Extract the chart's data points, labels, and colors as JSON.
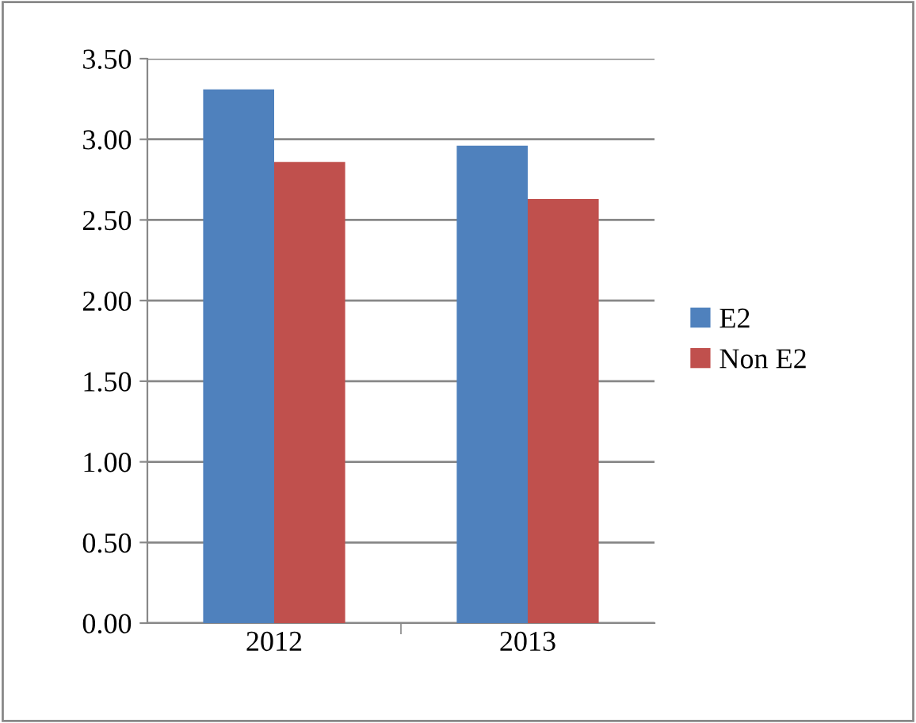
{
  "chart_data": {
    "type": "bar",
    "categories": [
      "2012",
      "2013"
    ],
    "series": [
      {
        "name": "E2",
        "color": "#4f81bd",
        "values": [
          3.31,
          2.96
        ]
      },
      {
        "name": "Non E2",
        "color": "#c0504d",
        "values": [
          2.86,
          2.63
        ]
      }
    ],
    "ylim": [
      0,
      3.5
    ],
    "yticks": [
      {
        "value": 0,
        "label": "0.00"
      },
      {
        "value": 0.5,
        "label": "0.50"
      },
      {
        "value": 1,
        "label": "1.00"
      },
      {
        "value": 1.5,
        "label": "1.50"
      },
      {
        "value": 2,
        "label": "2.00"
      },
      {
        "value": 2.5,
        "label": "2.50"
      },
      {
        "value": 3,
        "label": "3.00"
      },
      {
        "value": 3.5,
        "label": "3.50"
      }
    ],
    "grid": "y",
    "legend": "right"
  }
}
